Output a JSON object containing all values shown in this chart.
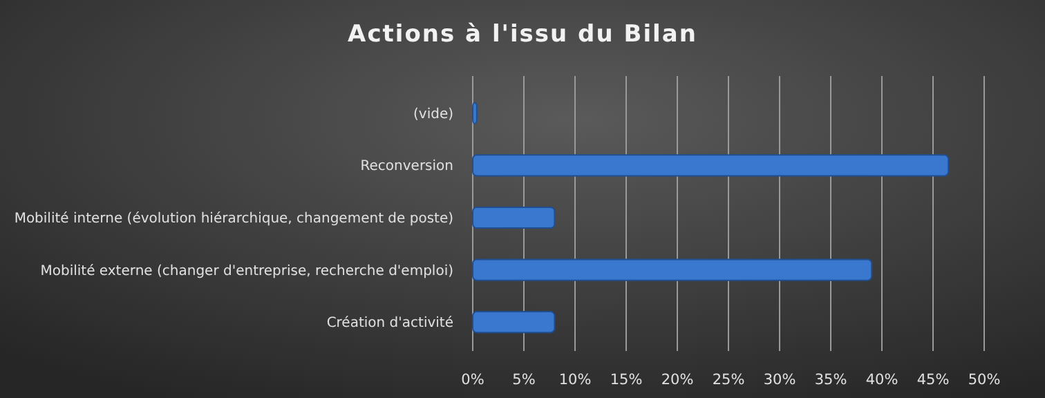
{
  "chart_data": {
    "type": "bar",
    "orientation": "horizontal",
    "title": "Actions à l'issu du Bilan",
    "categories": [
      "(vide)",
      "Reconversion",
      "Mobilité interne (évolution hiérarchique, changement de poste)",
      "Mobilité externe (changer d'entreprise, recherche d'emploi)",
      "Création d'activité"
    ],
    "values": [
      0.4,
      46.5,
      8,
      39,
      8
    ],
    "color": "#3a78d0",
    "xlim": [
      0,
      50
    ],
    "xticks": [
      {
        "value": 0,
        "label": "0%"
      },
      {
        "value": 5,
        "label": "5%"
      },
      {
        "value": 10,
        "label": "10%"
      },
      {
        "value": 15,
        "label": "15%"
      },
      {
        "value": 20,
        "label": "20%"
      },
      {
        "value": 25,
        "label": "25%"
      },
      {
        "value": 30,
        "label": "30%"
      },
      {
        "value": 35,
        "label": "35%"
      },
      {
        "value": 40,
        "label": "40%"
      },
      {
        "value": 45,
        "label": "45%"
      },
      {
        "value": 50,
        "label": "50%"
      }
    ],
    "grid": "x"
  }
}
